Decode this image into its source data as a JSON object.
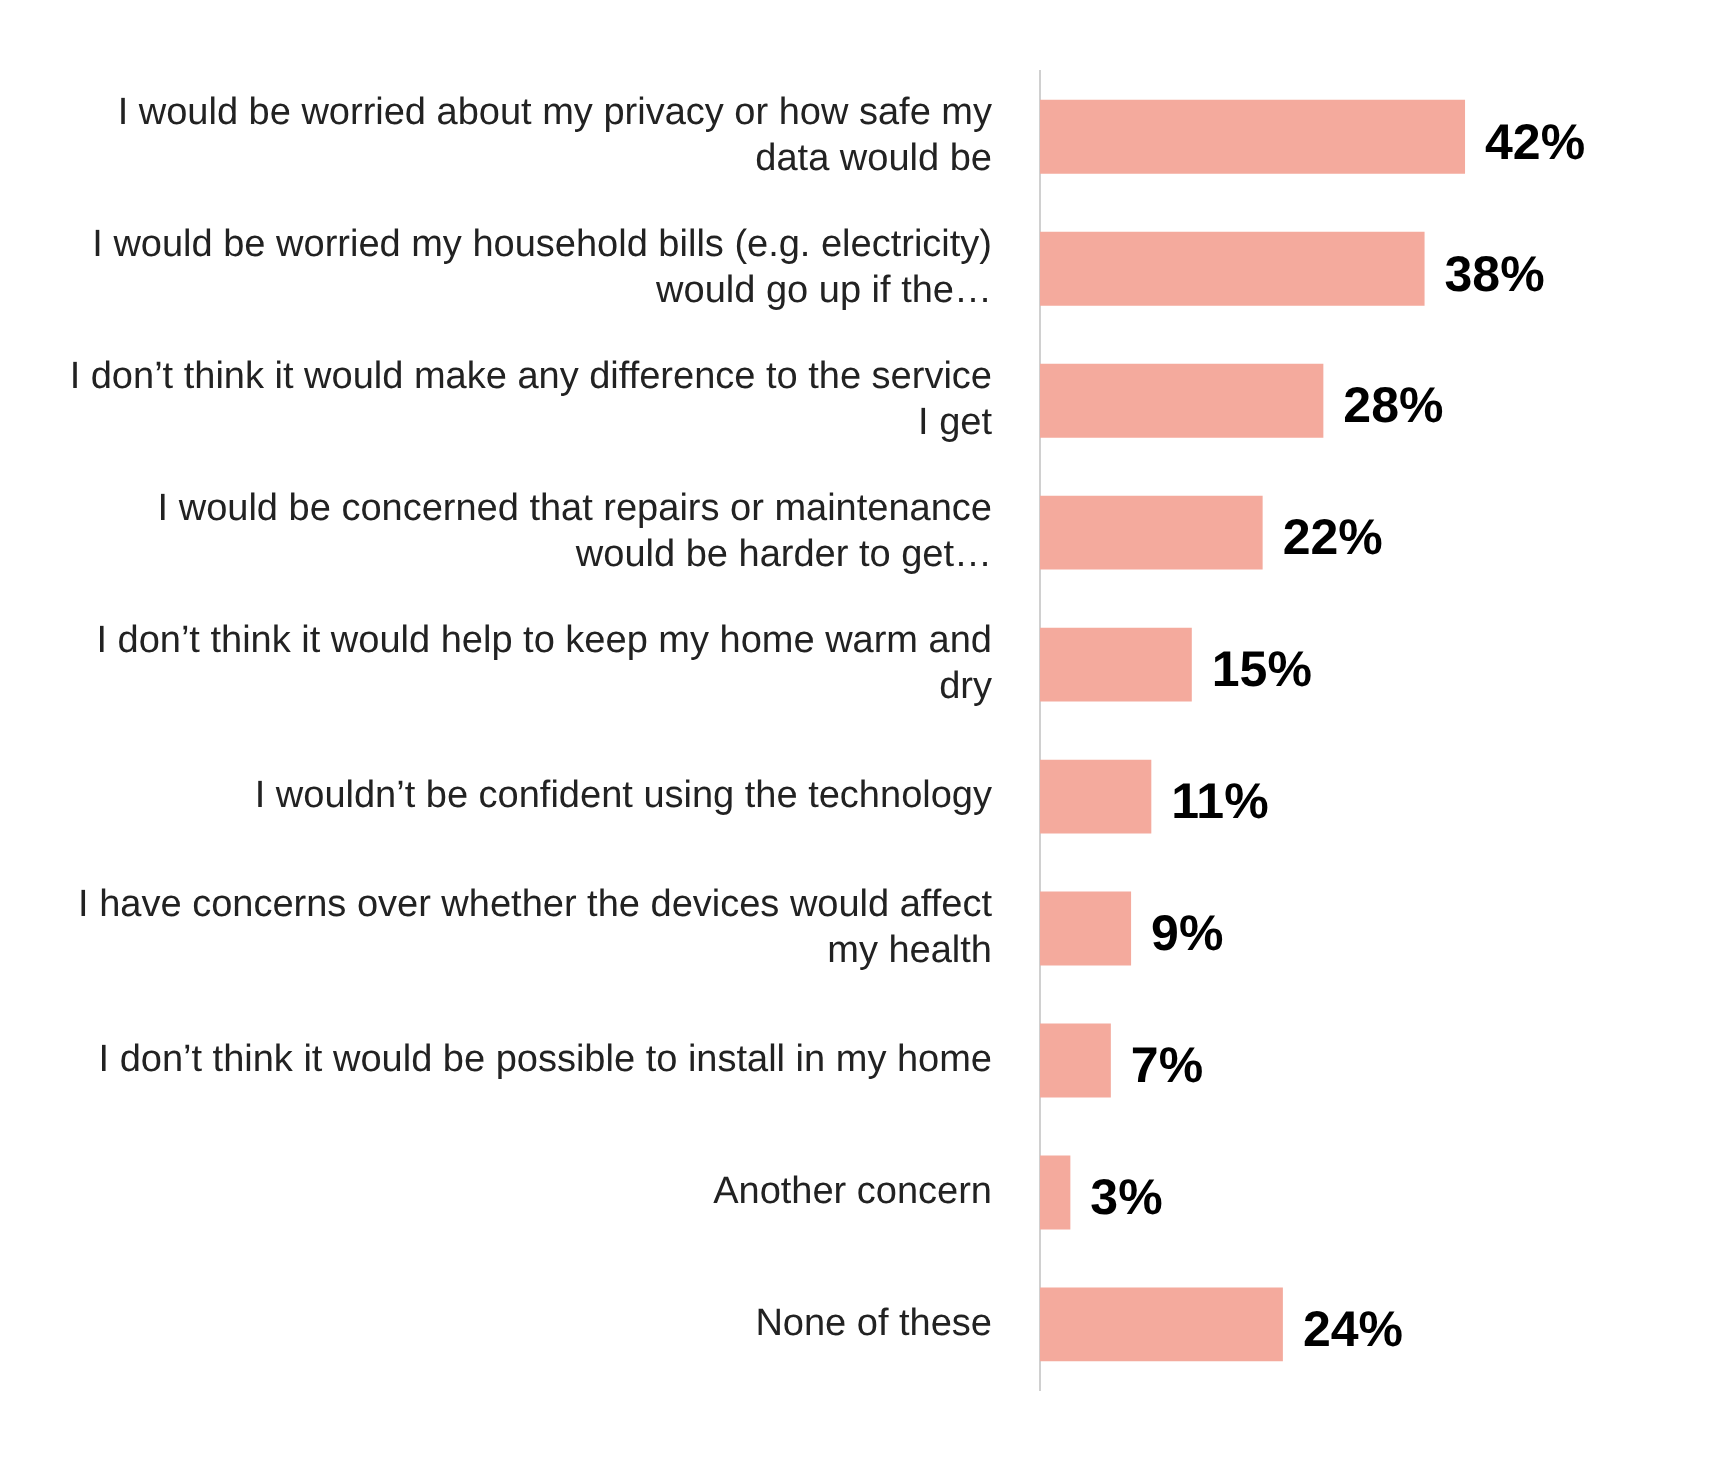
{
  "chart_data": {
    "type": "bar",
    "orientation": "horizontal",
    "categories": [
      "I would be worried about my privacy or how safe my data would be",
      "I would be worried my household bills (e.g. electricity) would go up if the…",
      "I don’t think it would make any difference to the service I get",
      "I would be concerned that repairs or maintenance would be harder to get…",
      "I don’t think it would help to keep my home warm and dry",
      "I wouldn’t be confident using the technology",
      "I have concerns over whether the devices would affect my health",
      "I don’t think it would be possible to install in my home",
      "Another concern",
      "None of these"
    ],
    "values": [
      42,
      38,
      28,
      22,
      15,
      11,
      9,
      7,
      3,
      24
    ],
    "value_labels": [
      "42%",
      "38%",
      "28%",
      "22%",
      "15%",
      "11%",
      "9%",
      "7%",
      "3%",
      "24%"
    ],
    "color": "#f4aa9d"
  }
}
